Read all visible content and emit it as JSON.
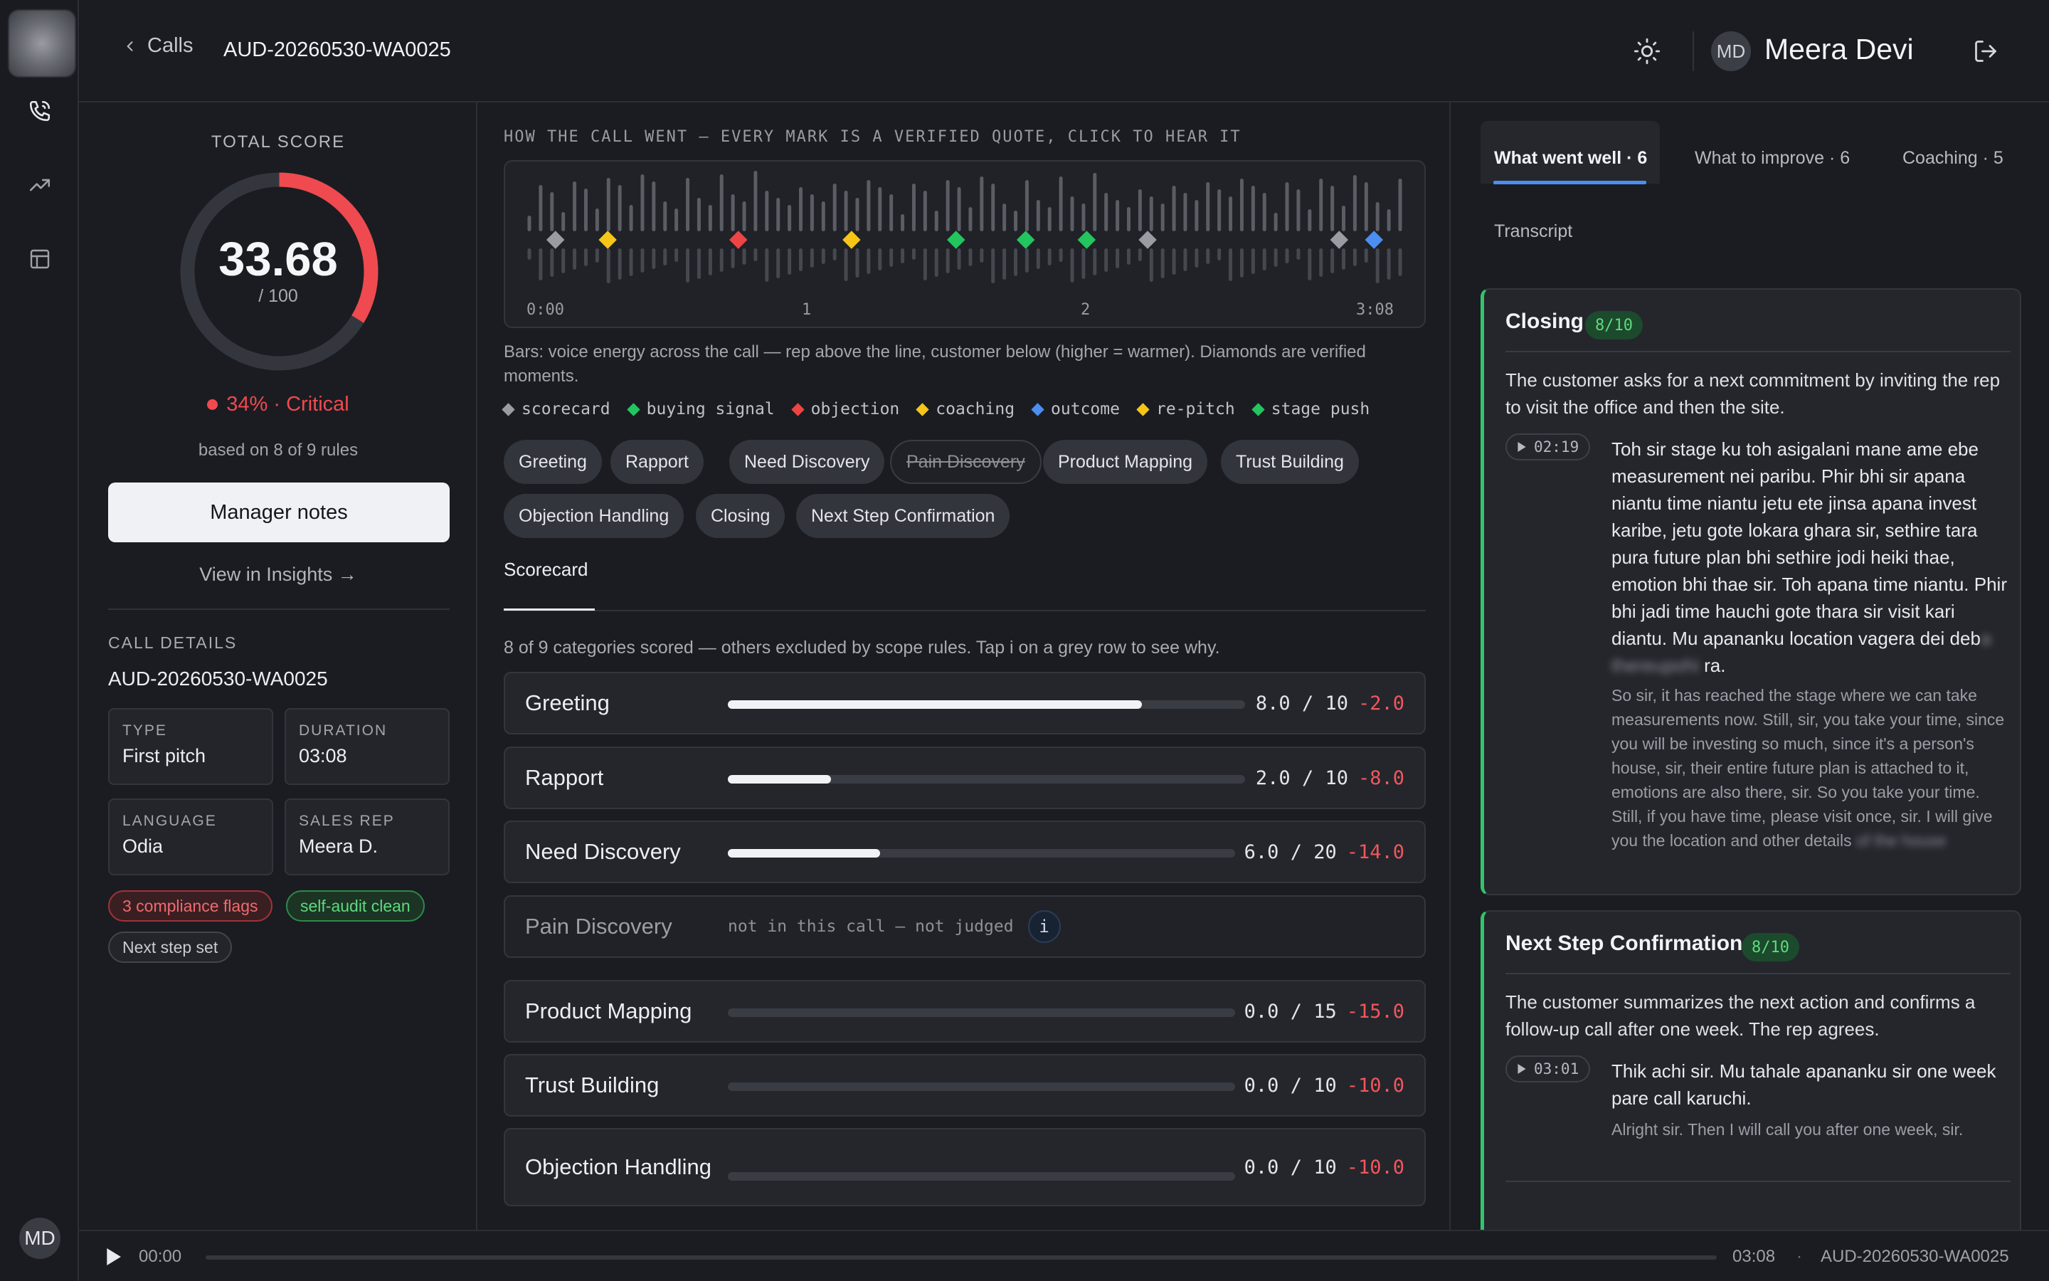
{
  "header": {
    "back_label": "Calls",
    "call_id": "AUD-20260530-WA0025",
    "user_initials": "MD",
    "user_name": "Meera Devi"
  },
  "rail": {
    "items": [
      {
        "name": "calls",
        "icon": "phone-icon",
        "active": true
      },
      {
        "name": "trends",
        "icon": "trending-up-icon"
      },
      {
        "name": "layout",
        "icon": "layout-icon"
      }
    ],
    "user_initials": "MD"
  },
  "score": {
    "label": "TOTAL SCORE",
    "value": "33.68",
    "denominator": "/ 100",
    "fraction": 0.3368,
    "status": "34% · Critical",
    "status_color": "#ef4a4f",
    "based_on": "based on 8 of 9 rules",
    "manager_notes": "Manager notes",
    "insights_link": "View in Insights →"
  },
  "call_details": {
    "label": "CALL DETAILS",
    "id": "AUD-20260530-WA0025",
    "fields": [
      {
        "key": "TYPE",
        "value": "First pitch"
      },
      {
        "key": "DURATION",
        "value": "03:08"
      },
      {
        "key": "LANGUAGE",
        "value": "Odia"
      },
      {
        "key": "SALES REP",
        "value": "Meera D."
      }
    ],
    "flags": [
      "3 compliance flags",
      "self-audit clean",
      "Next step set"
    ]
  },
  "timeline": {
    "label": "HOW THE CALL WENT — EVERY MARK IS A VERIFIED QUOTE, CLICK TO HEAR IT",
    "ticks": [
      "0:00",
      "1",
      "2",
      "3:08"
    ],
    "description": "Bars: voice energy across the call — rep above the line, customer below (higher = warmer). Diamonds are verified moments.",
    "markers": [
      {
        "type": "scorecard",
        "color": "#9a9ca4",
        "t": 0.03
      },
      {
        "type": "coaching",
        "color": "#f5c518",
        "t": 0.09
      },
      {
        "type": "objection",
        "color": "#ef4444",
        "t": 0.24
      },
      {
        "type": "coaching",
        "color": "#f5c518",
        "t": 0.37
      },
      {
        "type": "buying signal",
        "color": "#22c55e",
        "t": 0.49
      },
      {
        "type": "buying signal",
        "color": "#22c55e",
        "t": 0.57
      },
      {
        "type": "buying signal",
        "color": "#22c55e",
        "t": 0.64
      },
      {
        "type": "scorecard",
        "color": "#9a9ca4",
        "t": 0.71
      },
      {
        "type": "scorecard",
        "color": "#9a9ca4",
        "t": 0.93
      },
      {
        "type": "outcome",
        "color": "#4b8ef0",
        "t": 0.97
      }
    ]
  },
  "legend": [
    {
      "label": "scorecard",
      "color": "#9a9ca4"
    },
    {
      "label": "buying signal",
      "color": "#22c55e"
    },
    {
      "label": "objection",
      "color": "#ef4444"
    },
    {
      "label": "coaching",
      "color": "#f5c518"
    },
    {
      "label": "outcome",
      "color": "#4b8ef0"
    },
    {
      "label": "re-pitch",
      "color": "#f5c518"
    },
    {
      "label": "stage push",
      "color": "#22c55e"
    }
  ],
  "chips": [
    {
      "label": "Greeting"
    },
    {
      "label": "Rapport"
    },
    {
      "label": "Need Discovery"
    },
    {
      "label": "Pain Discovery",
      "excluded": true
    },
    {
      "label": "Product Mapping"
    },
    {
      "label": "Trust Building"
    },
    {
      "label": "Objection Handling"
    },
    {
      "label": "Closing"
    },
    {
      "label": "Next Step Confirmation"
    }
  ],
  "scorecard": {
    "tab": "Scorecard",
    "note": "8 of 9 categories scored — others excluded by scope rules. Tap i on a grey row to see why.",
    "rows": [
      {
        "name": "Greeting",
        "score": "8.0 / 10",
        "delta": "-2.0",
        "fraction": 0.8
      },
      {
        "name": "Rapport",
        "score": "2.0 / 10",
        "delta": "-8.0",
        "fraction": 0.2
      },
      {
        "name": "Need Discovery",
        "score": "6.0 / 20",
        "delta": "-14.0",
        "fraction": 0.3
      },
      {
        "name": "Pain Discovery",
        "not_judged": "not in this call — not judged"
      },
      {
        "name": "Product Mapping",
        "score": "0.0 / 15",
        "delta": "-15.0",
        "fraction": 0
      },
      {
        "name": "Trust Building",
        "score": "0.0 / 10",
        "delta": "-10.0",
        "fraction": 0
      },
      {
        "name": "Objection Handling",
        "score": "0.0 / 10",
        "delta": "-10.0",
        "fraction": 0
      }
    ]
  },
  "right_tabs": {
    "went_well": "What went well · 6",
    "improve": "What to improve · 6",
    "coaching": "Coaching · 5",
    "transcript": "Transcript"
  },
  "cards": [
    {
      "title": "Closing",
      "badge": "8/10",
      "summary": "The customer asks for a next commitment by inviting the rep to visit the office and then the site.",
      "time": "02:19",
      "quote_a": "Toh sir stage ku toh asigalani mane ame ebe measurement nei paribu. Phir bhi sir apana niantu time niantu jetu ete jinsa apana invest karibe, jetu gote lokara ghara sir, sethire tara pura future plan bhi sethire jodi heiki thae, emotion bhi thae sir. Toh apana time niantu. Phir bhi jadi time hauchi gote thara sir visit kari diantu. Mu apananku location vagera dei deb",
      "quote_redacted": "a thereupohi",
      "quote_b": " ra.",
      "translation_a": "So sir, it has reached the stage where we can take measurements now. Still, sir, you take your time, since you will be investing so much, since it's a person's house, sir, their entire future plan is attached to it, emotions are also there, sir. So you take your time. Still, if you have time, please visit once, sir. I will give you the location and other details ",
      "translation_redacted": "of the house"
    },
    {
      "title": "Next Step Confirmation",
      "badge": "8/10",
      "summary": "The customer summarizes the next action and confirms a follow-up call after one week. The rep agrees.",
      "time": "03:01",
      "quote": "Thik achi sir. Mu tahale apananku sir one week pare call karuchi.",
      "translation": "Alright sir. Then I will call you after one week, sir."
    }
  ],
  "player": {
    "current": "00:00",
    "total": "03:08",
    "separator": "·",
    "id": "AUD-20260530-WA0025"
  }
}
